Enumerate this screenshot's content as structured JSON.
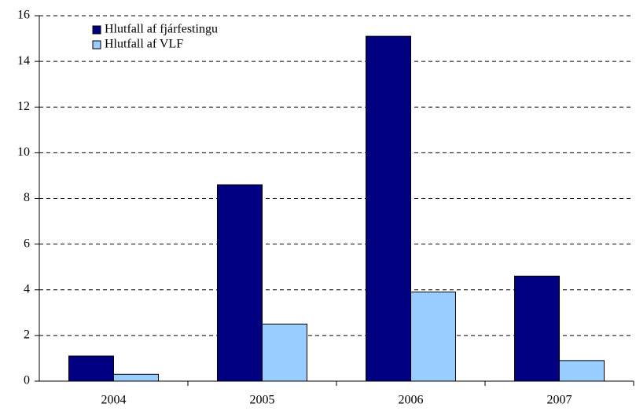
{
  "chart_data": {
    "type": "bar",
    "categories": [
      "2004",
      "2005",
      "2006",
      "2007"
    ],
    "series": [
      {
        "name": "Hlutfall af fjárfestingu",
        "color": "#000080",
        "values": [
          1.1,
          8.6,
          15.1,
          4.6
        ]
      },
      {
        "name": "Hlutfall af VLF",
        "color": "#99ccff",
        "values": [
          0.3,
          2.5,
          3.9,
          0.9
        ]
      }
    ],
    "ylim": [
      0,
      16
    ],
    "yticks": [
      0,
      2,
      4,
      6,
      8,
      10,
      12,
      14,
      16
    ],
    "grid": true,
    "legend": "top-left"
  }
}
